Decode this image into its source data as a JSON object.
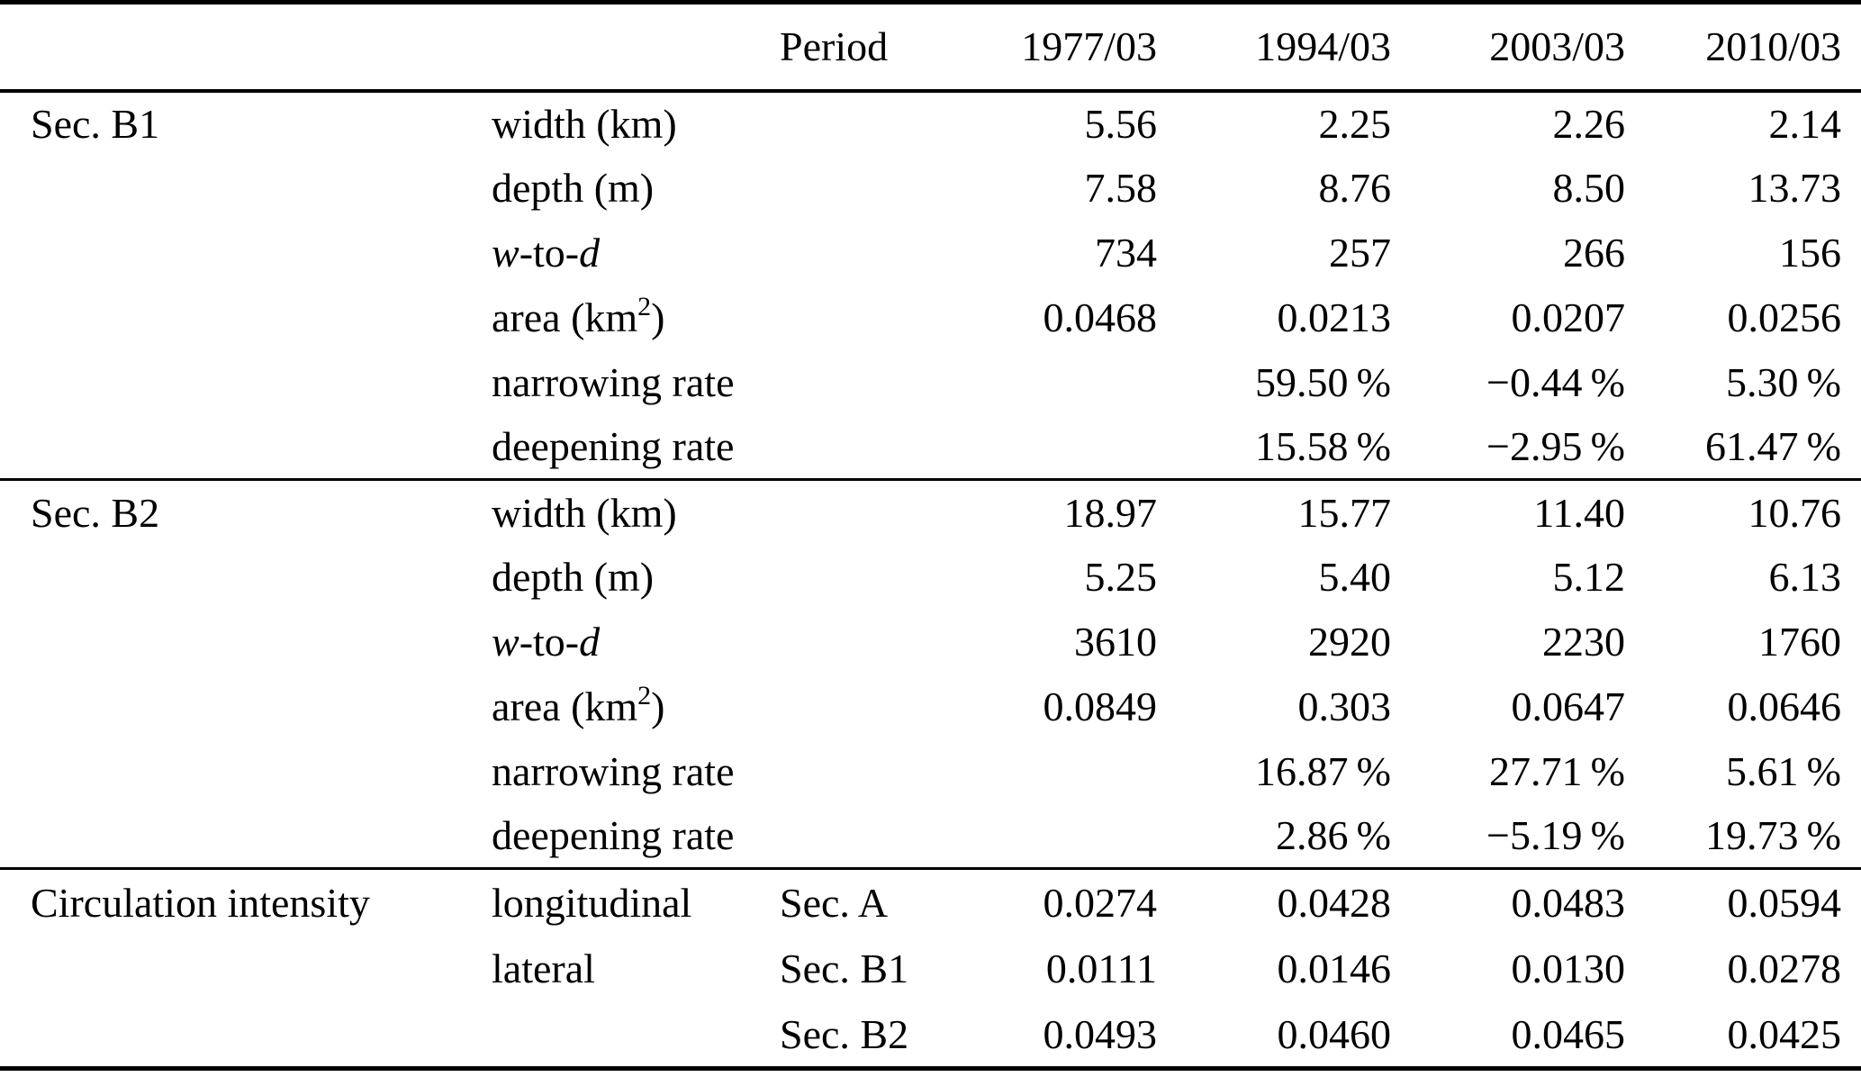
{
  "meta": {
    "background_color": "#ffffff",
    "text_color": "#000000",
    "rule_color": "#000000"
  },
  "header": {
    "period_label": "Period",
    "periods": [
      "1977/03",
      "1994/03",
      "2003/03",
      "2010/03"
    ]
  },
  "sections": [
    {
      "name": "Sec. B1",
      "rows": [
        {
          "label": [
            {
              "t": "width (km)"
            }
          ],
          "sub": "",
          "values": [
            "5.56",
            "2.25",
            "2.26",
            "2.14"
          ]
        },
        {
          "label": [
            {
              "t": "depth (m)"
            }
          ],
          "sub": "",
          "values": [
            "7.58",
            "8.76",
            "8.50",
            "13.73"
          ]
        },
        {
          "label": [
            {
              "t": "w",
              "s": "i"
            },
            {
              "t": "-to-"
            },
            {
              "t": "d",
              "s": "i"
            }
          ],
          "sub": "",
          "values": [
            "734",
            "257",
            "266",
            "156"
          ]
        },
        {
          "label": [
            {
              "t": "area (km"
            },
            {
              "t": "2",
              "s": "sup"
            },
            {
              "t": ")"
            }
          ],
          "sub": "",
          "values": [
            "0.0468",
            "0.0213",
            "0.0207",
            "0.0256"
          ]
        },
        {
          "label": [
            {
              "t": "narrowing rate"
            }
          ],
          "sub": "",
          "values": [
            "",
            "59.50 %",
            "−0.44 %",
            "5.30 %"
          ]
        },
        {
          "label": [
            {
              "t": "deepening rate"
            }
          ],
          "sub": "",
          "values": [
            "",
            "15.58 %",
            "−2.95 %",
            "61.47 %"
          ]
        }
      ]
    },
    {
      "name": "Sec. B2",
      "rows": [
        {
          "label": [
            {
              "t": "width (km)"
            }
          ],
          "sub": "",
          "values": [
            "18.97",
            "15.77",
            "11.40",
            "10.76"
          ]
        },
        {
          "label": [
            {
              "t": "depth (m)"
            }
          ],
          "sub": "",
          "values": [
            "5.25",
            "5.40",
            "5.12",
            "6.13"
          ]
        },
        {
          "label": [
            {
              "t": "w",
              "s": "i"
            },
            {
              "t": "-to-"
            },
            {
              "t": "d",
              "s": "i"
            }
          ],
          "sub": "",
          "values": [
            "3610",
            "2920",
            "2230",
            "1760"
          ]
        },
        {
          "label": [
            {
              "t": "area (km"
            },
            {
              "t": "2",
              "s": "sup"
            },
            {
              "t": ")"
            }
          ],
          "sub": "",
          "values": [
            "0.0849",
            "0.303",
            "0.0647",
            "0.0646"
          ]
        },
        {
          "label": [
            {
              "t": "narrowing rate"
            }
          ],
          "sub": "",
          "values": [
            "",
            "16.87 %",
            "27.71 %",
            "5.61 %"
          ]
        },
        {
          "label": [
            {
              "t": "deepening rate"
            }
          ],
          "sub": "",
          "values": [
            "",
            "2.86 %",
            "−5.19 %",
            "19.73 %"
          ]
        }
      ]
    },
    {
      "name": "Circulation intensity",
      "rows": [
        {
          "label": [
            {
              "t": "longitudinal"
            }
          ],
          "sub": "Sec. A",
          "values": [
            "0.0274",
            "0.0428",
            "0.0483",
            "0.0594"
          ]
        },
        {
          "label": [
            {
              "t": "lateral"
            }
          ],
          "sub": "Sec. B1",
          "values": [
            "0.0111",
            "0.0146",
            "0.0130",
            "0.0278"
          ]
        },
        {
          "label": [],
          "sub": "Sec. B2",
          "values": [
            "0.0493",
            "0.0460",
            "0.0465",
            "0.0425"
          ]
        }
      ]
    }
  ]
}
